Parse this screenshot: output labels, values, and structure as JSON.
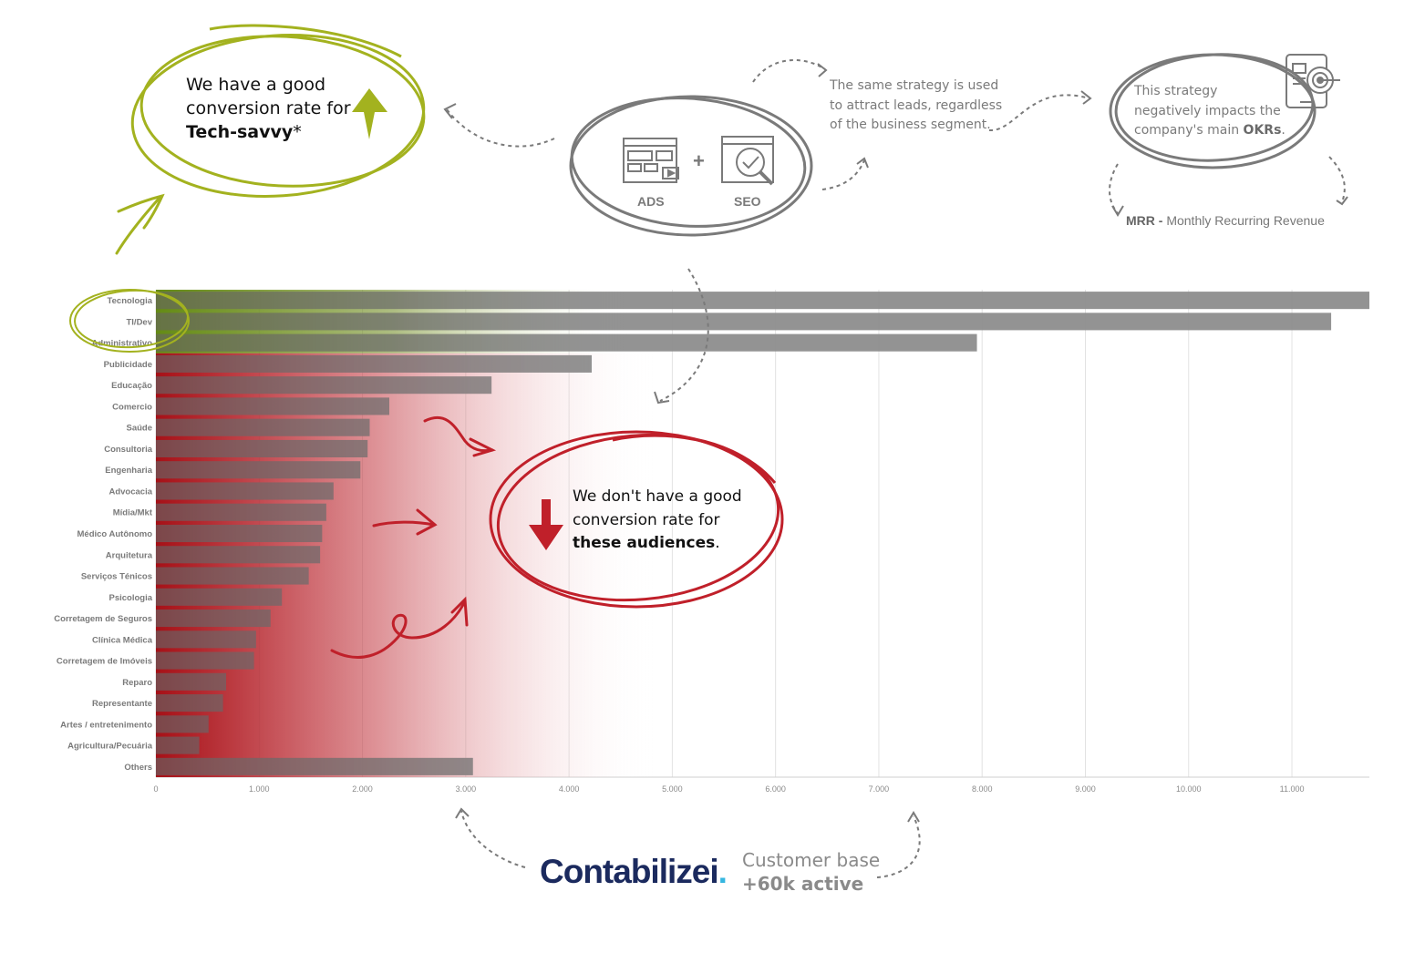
{
  "annotations": {
    "green_note": {
      "line1": "We have a good",
      "line2": "conversion rate for",
      "bold": "Tech-savvy",
      "suffix": "*"
    },
    "strategy_note": {
      "line1": "The same strategy is used",
      "line2": "to attract leads, regardless",
      "line3": "of the business segment."
    },
    "okr_note": {
      "line1": "This strategy",
      "line2": "negatively impacts the",
      "line3_pre": "company's main ",
      "line3_bold": "OKRs",
      "line3_post": "."
    },
    "mrr": {
      "bold": "MRR -",
      "text": " Monthly Recurring Revenue"
    },
    "channels": {
      "ads": "ADS",
      "plus": "+",
      "seo": "SEO"
    },
    "red_note": {
      "line1": "We don't have a good",
      "line2": "conversion rate for",
      "bold": "these audiences",
      "suffix": "."
    }
  },
  "footer": {
    "brand": "Contabilizei",
    "brand_dot": ".",
    "tagline1": "Customer base",
    "tagline2": "+60k active"
  },
  "colors": {
    "green": "#a3b21f",
    "red": "#c0202a",
    "bar_gray": "#8d8d8d",
    "icon_gray": "#7a7a7a",
    "brand_navy": "#1b2a5e",
    "brand_cyan": "#35b6e0"
  },
  "chart_data": {
    "type": "bar",
    "orientation": "horizontal",
    "categories": [
      "Tecnologia",
      "TI/Dev",
      "Administrativo",
      "Publicidade",
      "Educação",
      "Comercio",
      "Saúde",
      "Consultoria",
      "Engenharia",
      "Advocacia",
      "Mídia/Mkt",
      "Médico Autônomo",
      "Arquitetura",
      "Serviços Ténicos",
      "Psicologia",
      "Corretagem de Seguros",
      "Clínica Médica",
      "Corretagem de Imóveis",
      "Reparo",
      "Representante",
      "Artes / entretenimento",
      "Agricultura/Pecuária",
      "Others"
    ],
    "values": [
      11750,
      11380,
      7950,
      4220,
      3250,
      2260,
      2070,
      2050,
      1980,
      1720,
      1650,
      1610,
      1590,
      1480,
      1220,
      1110,
      970,
      950,
      680,
      650,
      510,
      420,
      3070
    ],
    "xlim": [
      0,
      11750
    ],
    "xticks": [
      0,
      1000,
      2000,
      3000,
      4000,
      5000,
      6000,
      7000,
      8000,
      9000,
      10000,
      11000
    ],
    "xtick_labels": [
      "0",
      "1.000",
      "2.000",
      "3.000",
      "4.000",
      "5.000",
      "6.000",
      "7.000",
      "8.000",
      "9.000",
      "10.000",
      "11.000"
    ],
    "grid": true,
    "highlighted_good": [
      "Tecnologia",
      "TI/Dev",
      "Administrativo"
    ]
  }
}
